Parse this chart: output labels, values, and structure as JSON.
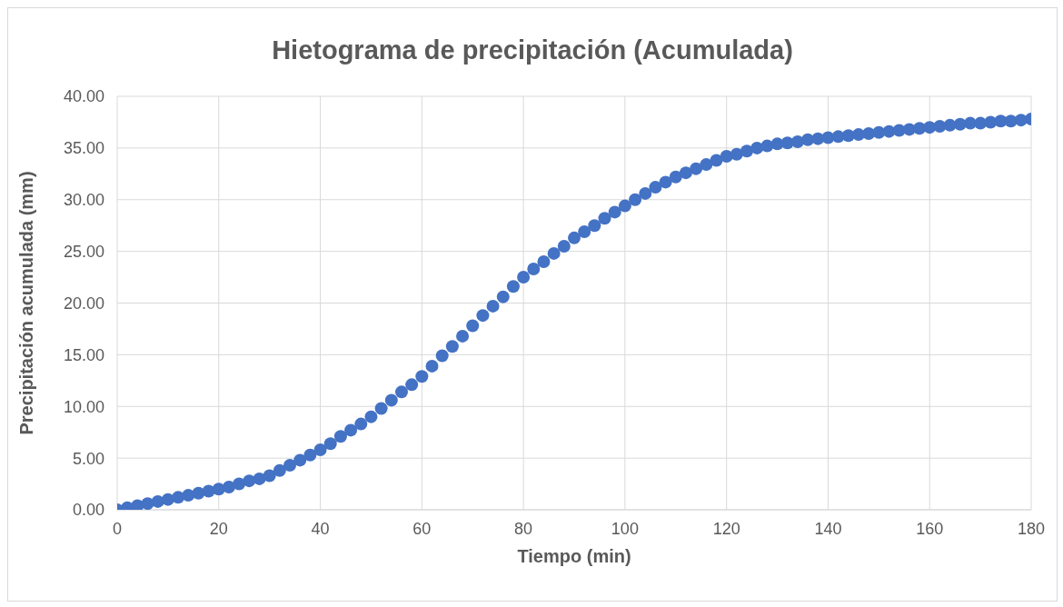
{
  "chart_data": {
    "type": "scatter",
    "title": "Hietograma de precipitación (Acumulada)",
    "xlabel": "Tiempo (min)",
    "ylabel": "Precipitación acumulada (mm)",
    "x": [
      0,
      2,
      4,
      6,
      8,
      10,
      12,
      14,
      16,
      18,
      20,
      22,
      24,
      26,
      28,
      30,
      32,
      34,
      36,
      38,
      40,
      42,
      44,
      46,
      48,
      50,
      52,
      54,
      56,
      58,
      60,
      62,
      64,
      66,
      68,
      70,
      72,
      74,
      76,
      78,
      80,
      82,
      84,
      86,
      88,
      90,
      92,
      94,
      96,
      98,
      100,
      102,
      104,
      106,
      108,
      110,
      112,
      114,
      116,
      118,
      120,
      122,
      124,
      126,
      128,
      130,
      132,
      134,
      136,
      138,
      140,
      142,
      144,
      146,
      148,
      150,
      152,
      154,
      156,
      158,
      160,
      162,
      164,
      166,
      168,
      170,
      172,
      174,
      176,
      178,
      180
    ],
    "series": [
      {
        "color": "#4472c4",
        "values": [
          0,
          0.2,
          0.4,
          0.6,
          0.8,
          1.0,
          1.2,
          1.4,
          1.6,
          1.8,
          2.0,
          2.2,
          2.5,
          2.8,
          3.0,
          3.3,
          3.8,
          4.3,
          4.8,
          5.3,
          5.8,
          6.4,
          7.1,
          7.7,
          8.3,
          9.0,
          9.8,
          10.6,
          11.4,
          12.1,
          12.9,
          13.9,
          14.9,
          15.8,
          16.8,
          17.8,
          18.8,
          19.7,
          20.6,
          21.6,
          22.5,
          23.3,
          24.0,
          24.8,
          25.5,
          26.3,
          26.9,
          27.5,
          28.2,
          28.8,
          29.4,
          30.0,
          30.6,
          31.2,
          31.7,
          32.2,
          32.6,
          33.0,
          33.4,
          33.8,
          34.2,
          34.4,
          34.7,
          35.0,
          35.2,
          35.4,
          35.5,
          35.6,
          35.8,
          35.9,
          36.0,
          36.1,
          36.2,
          36.3,
          36.4,
          36.5,
          36.6,
          36.7,
          36.8,
          36.9,
          37.0,
          37.1,
          37.2,
          37.3,
          37.4,
          37.4,
          37.5,
          37.6,
          37.6,
          37.7,
          37.8
        ]
      }
    ],
    "xlim": [
      0,
      180
    ],
    "xticks": [
      0,
      20,
      40,
      60,
      80,
      100,
      120,
      140,
      160,
      180
    ],
    "ylim": [
      0,
      40
    ],
    "yticks": [
      {
        "value": 0,
        "label": "0.00"
      },
      {
        "value": 5,
        "label": "5.00"
      },
      {
        "value": 10,
        "label": "10.00"
      },
      {
        "value": 15,
        "label": "15.00"
      },
      {
        "value": 20,
        "label": "20.00"
      },
      {
        "value": 25,
        "label": "25.00"
      },
      {
        "value": 30,
        "label": "30.00"
      },
      {
        "value": 35,
        "label": "35.00"
      },
      {
        "value": 40,
        "label": "40.00"
      }
    ],
    "grid": true,
    "marker": "circle",
    "legend": false
  }
}
